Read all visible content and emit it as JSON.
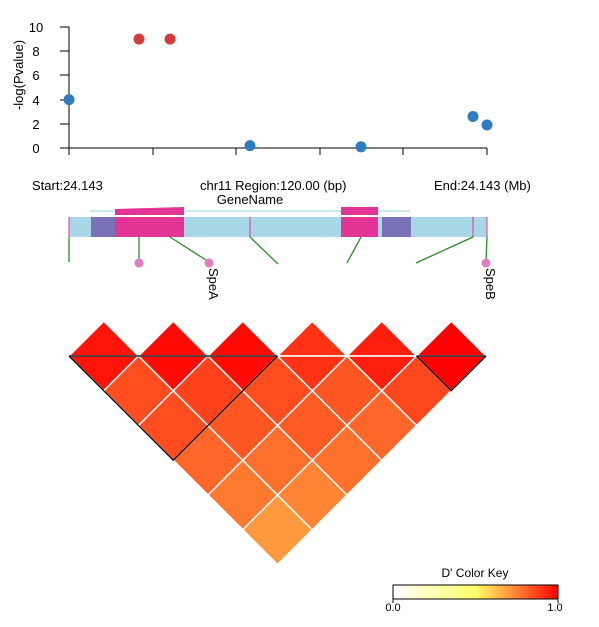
{
  "chart_data": [
    {
      "type": "scatter",
      "ylabel": "-log(Pvalue)",
      "ylim": [
        0,
        10
      ],
      "y_ticks": [
        "10",
        "8",
        "6",
        "4",
        "2",
        "0"
      ],
      "points": [
        {
          "x": 24.143,
          "y": 4.0,
          "color": "#2f7dc0"
        },
        {
          "x": 24.1592,
          "y": 9.0,
          "color": "#d43c3c"
        },
        {
          "x": 24.1636,
          "y": 9.0,
          "color": "#d43c3c"
        },
        {
          "x": 24.1866,
          "y": 0.2,
          "color": "#2f7dc0"
        },
        {
          "x": 24.2142,
          "y": 0.1,
          "color": "#2f7dc0"
        },
        {
          "x": 24.2402,
          "y": 2.6,
          "color": "#2f7dc0"
        },
        {
          "x": 24.243,
          "y": 1.9,
          "color": "#2f7dc0"
        }
      ]
    },
    {
      "type": "heatmap",
      "title": "D' Color Key",
      "scale_min_label": "0.0",
      "scale_max_label": "1.0",
      "scale_colors": [
        "#ffffff",
        "#ffff66",
        "#ff0000"
      ],
      "snp_count": 7,
      "matrix": [
        [
          0.96,
          0.85,
          0.85,
          0.8,
          0.76,
          0.7
        ],
        [
          0.98,
          0.87,
          0.83,
          0.78,
          0.74
        ],
        [
          0.98,
          0.85,
          0.82,
          0.78
        ],
        [
          0.9,
          0.83,
          0.8
        ],
        [
          0.94,
          0.86
        ],
        [
          1.0
        ]
      ],
      "blocks": [
        [
          0,
          3
        ],
        [
          5,
          6
        ]
      ]
    }
  ],
  "region": {
    "start_label": "Start:24.143",
    "middle_label": "chr11 Region:120.00 (bp)",
    "end_label": "End:24.143 (Mb)"
  },
  "gene": {
    "name": "GeneName",
    "snp_labels": [
      "SpeA",
      "SpeB"
    ]
  },
  "colors": {
    "intron": "#a8d8e8",
    "utr": "#7a72b8",
    "exon": "#e23596",
    "snp_tick": "#e23596",
    "marker_dot": "#e07cc0",
    "connector": "#2d8a2d"
  }
}
